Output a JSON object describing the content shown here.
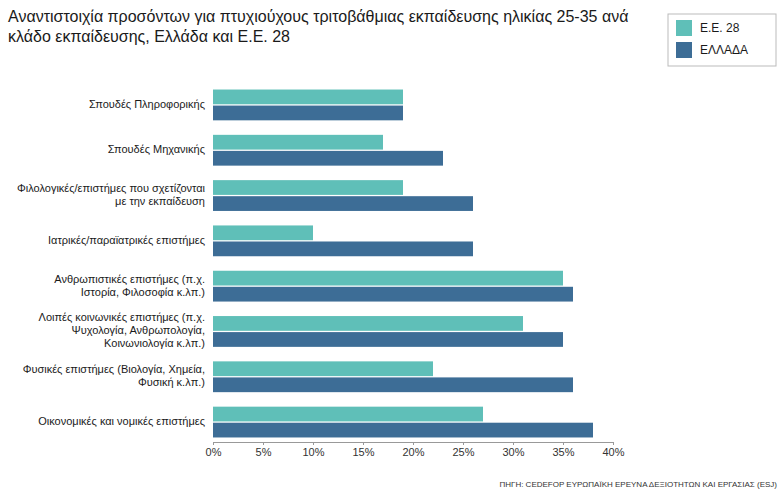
{
  "chart_data": {
    "type": "bar",
    "orientation": "horizontal",
    "title": "Αναντιστοιχία προσόντων για πτυχιούχους τριτοβάθμιας εκπαίδευσης ηλικίας 25-35 ανά κλάδο εκπαίδευσης, Ελλάδα και Ε.Ε. 28",
    "source": "ΠΗΓΗ: CEDEFOP ΕΥΡΩΠΑΪΚΗ ΕΡΕΥΝΑ ΔΕΞΙΟΤΗΤΩΝ ΚΑΙ ΕΡΓΑΣΙΑΣ (ESJ)",
    "categories": [
      "Σπουδές Πληροφορικής",
      "Σπουδές Μηχανικής",
      "Φιλολογικές/επιστήμες που σχετίζονται με την εκπαίδευση",
      "Ιατρικές/παραϊατρικές επιστήμες",
      "Ανθρωπιστικές επιστήμες (π.χ. Ιστορία, Φιλοσοφία κ.λπ.)",
      "Λοιπές κοινωνικές επιστήμες (π.χ. Ψυχολογία, Ανθρωπολογία, Κοινωνιολογία κ.λπ.)",
      "Φυσικές επιστήμες (Βιολογία, Χημεία, Φυσική κ.λπ.)",
      "Οικονομικές και νομικές επιστήμες"
    ],
    "series": [
      {
        "name": "Ε.Ε. 28",
        "color": "#5fbfb8",
        "values": [
          19,
          17,
          19,
          10,
          35,
          31,
          22,
          27
        ]
      },
      {
        "name": "ΕΛΛΑΔΑ",
        "color": "#3d6d96",
        "values": [
          19,
          23,
          26,
          26,
          36,
          35,
          36,
          38
        ]
      }
    ],
    "xlim": [
      0,
      40
    ],
    "xticks": [
      {
        "value": 0,
        "label": "0%"
      },
      {
        "value": 5,
        "label": "5%"
      },
      {
        "value": 10,
        "label": "10%"
      },
      {
        "value": 15,
        "label": "15%"
      },
      {
        "value": 20,
        "label": "20%"
      },
      {
        "value": 25,
        "label": "25%"
      },
      {
        "value": 30,
        "label": "30%"
      },
      {
        "value": 35,
        "label": "35%"
      },
      {
        "value": 40,
        "label": "40%"
      }
    ],
    "grid": false,
    "legend": "upper right"
  }
}
